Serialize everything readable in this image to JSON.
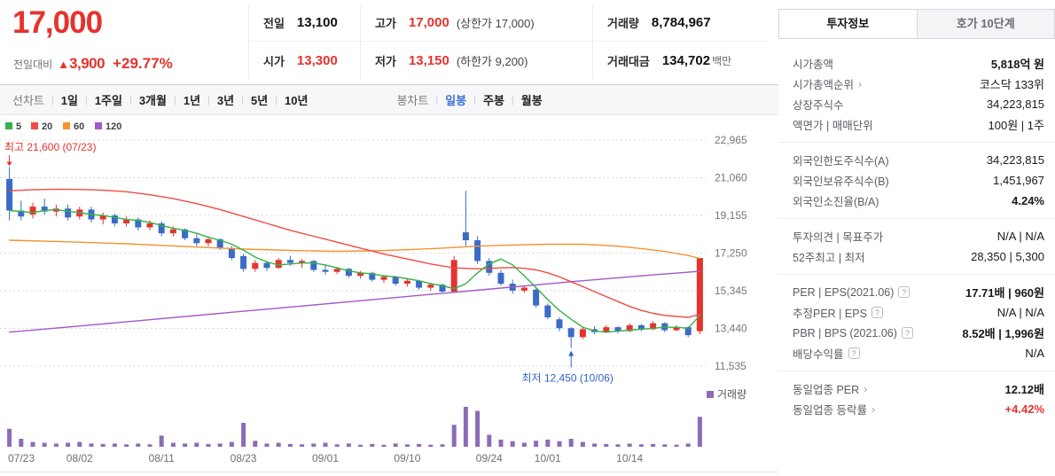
{
  "header": {
    "price": "17,000",
    "change_label": "전일대비",
    "change_arrow": "▲",
    "change_value": "3,900",
    "change_percent": "+29.77%",
    "stats": {
      "row1": [
        {
          "label": "전일",
          "value": "13,100",
          "red": false
        },
        {
          "label": "고가",
          "value": "17,000",
          "red": true,
          "extra": "(상한가 17,000)"
        },
        {
          "label": "거래량",
          "value": "8,784,967",
          "red": false
        }
      ],
      "row2": [
        {
          "label": "시가",
          "value": "13,300",
          "red": true
        },
        {
          "label": "저가",
          "value": "13,150",
          "red": true,
          "extra": "(하한가 9,200)"
        },
        {
          "label": "거래대금",
          "value": "134,702",
          "red": false,
          "suffix": "백만"
        }
      ]
    }
  },
  "toolbar": {
    "separator": "|",
    "left_group_label": "선차트",
    "left_items": [
      "1일",
      "1주일",
      "3개월",
      "1년",
      "3년",
      "5년",
      "10년"
    ],
    "right_group_label": "봉차트",
    "right_items": [
      {
        "label": "일봉",
        "active": true
      },
      {
        "label": "주봉",
        "active": false
      },
      {
        "label": "월봉",
        "active": false
      }
    ]
  },
  "chart_data": {
    "type": "candlestick",
    "up_color": "#e5332d",
    "down_color": "#3a6bc6",
    "volume_color": "#8d6bb8",
    "volume_legend": "거래량",
    "legend": [
      {
        "label": "5",
        "color": "#33b24a"
      },
      {
        "label": "20",
        "color": "#ef4b44"
      },
      {
        "label": "60",
        "color": "#f5922f"
      },
      {
        "label": "120",
        "color": "#a259c9"
      }
    ],
    "y_ticks": [
      {
        "value": 22965,
        "label": "22,965"
      },
      {
        "value": 21060,
        "label": "21,060"
      },
      {
        "value": 19155,
        "label": "19,155"
      },
      {
        "value": 17250,
        "label": "17,250"
      },
      {
        "value": 15345,
        "label": "15,345"
      },
      {
        "value": 13440,
        "label": "13,440"
      },
      {
        "value": 11535,
        "label": "11,535"
      }
    ],
    "x_ticks": [
      {
        "index": 0,
        "label": "07/23"
      },
      {
        "index": 6,
        "label": "08/02"
      },
      {
        "index": 13,
        "label": "08/11"
      },
      {
        "index": 20,
        "label": "08/23"
      },
      {
        "index": 27,
        "label": "09/01"
      },
      {
        "index": 34,
        "label": "09/10"
      },
      {
        "index": 41,
        "label": "09/24"
      },
      {
        "index": 46,
        "label": "10/01"
      },
      {
        "index": 53,
        "label": "10/14"
      }
    ],
    "annotations": {
      "high": {
        "text": "최고 21,600 (07/23)",
        "index": 0,
        "value": 21600
      },
      "low": {
        "text": "최저 12,450 (10/06)",
        "index": 48,
        "value": 12450
      }
    },
    "candles": [
      [
        "07/23",
        21000,
        21600,
        18900,
        19400
      ],
      [
        "07/26",
        19400,
        19900,
        18900,
        19100
      ],
      [
        "07/27",
        19200,
        19800,
        19000,
        19600
      ],
      [
        "07/28",
        19600,
        20000,
        19200,
        19350
      ],
      [
        "07/29",
        19350,
        19700,
        19100,
        19500
      ],
      [
        "07/30",
        19500,
        19700,
        18900,
        19050
      ],
      [
        "08/02",
        19100,
        19600,
        18950,
        19450
      ],
      [
        "08/03",
        19450,
        19600,
        18800,
        18950
      ],
      [
        "08/04",
        18950,
        19300,
        18700,
        19150
      ],
      [
        "08/05",
        19150,
        19250,
        18600,
        18750
      ],
      [
        "08/06",
        18750,
        19100,
        18600,
        18950
      ],
      [
        "08/09",
        18950,
        19050,
        18400,
        18550
      ],
      [
        "08/10",
        18550,
        18900,
        18400,
        18750
      ],
      [
        "08/11",
        18750,
        18850,
        18100,
        18250
      ],
      [
        "08/12",
        18250,
        18600,
        18100,
        18450
      ],
      [
        "08/13",
        18450,
        18500,
        17900,
        18000
      ],
      [
        "08/17",
        18000,
        18200,
        17600,
        17750
      ],
      [
        "08/18",
        17750,
        18100,
        17600,
        17950
      ],
      [
        "08/19",
        17950,
        18000,
        17400,
        17500
      ],
      [
        "08/20",
        17500,
        17600,
        16900,
        17000
      ],
      [
        "08/23",
        17100,
        17200,
        16300,
        16450
      ],
      [
        "08/24",
        16450,
        16900,
        16300,
        16750
      ],
      [
        "08/25",
        16750,
        16850,
        16350,
        16500
      ],
      [
        "08/26",
        16500,
        17000,
        16450,
        16900
      ],
      [
        "08/27",
        16900,
        17100,
        16600,
        16750
      ],
      [
        "08/30",
        16750,
        16950,
        16500,
        16850
      ],
      [
        "08/31",
        16850,
        16900,
        16300,
        16400
      ],
      [
        "09/01",
        16400,
        16650,
        16150,
        16300
      ],
      [
        "09/02",
        16300,
        16550,
        16200,
        16450
      ],
      [
        "09/03",
        16450,
        16500,
        16000,
        16100
      ],
      [
        "09/06",
        16100,
        16350,
        15950,
        16250
      ],
      [
        "09/07",
        16250,
        16300,
        15800,
        15900
      ],
      [
        "09/08",
        15900,
        16150,
        15750,
        16050
      ],
      [
        "09/09",
        16050,
        16100,
        15600,
        15700
      ],
      [
        "09/10",
        15700,
        15950,
        15550,
        15850
      ],
      [
        "09/13",
        15850,
        15900,
        15400,
        15500
      ],
      [
        "09/14",
        15500,
        15750,
        15350,
        15650
      ],
      [
        "09/15",
        15650,
        15700,
        15200,
        15300
      ],
      [
        "09/16",
        15300,
        17100,
        15250,
        16900
      ],
      [
        "09/17",
        18300,
        20400,
        17600,
        17900
      ],
      [
        "09/23",
        17900,
        18100,
        16700,
        16850
      ],
      [
        "09/24",
        16850,
        17000,
        16100,
        16250
      ],
      [
        "09/27",
        16250,
        16400,
        15600,
        15700
      ],
      [
        "09/28",
        15700,
        15900,
        15200,
        15350
      ],
      [
        "09/29",
        15350,
        15600,
        15250,
        15500
      ],
      [
        "09/30",
        15400,
        15450,
        14500,
        14600
      ],
      [
        "10/01",
        14600,
        14700,
        13900,
        14000
      ],
      [
        "10/05",
        13900,
        14000,
        13300,
        13450
      ],
      [
        "10/06",
        13450,
        13500,
        12450,
        13000
      ],
      [
        "10/07",
        13000,
        13500,
        12900,
        13400
      ],
      [
        "10/08",
        13400,
        13550,
        13150,
        13250
      ],
      [
        "10/12",
        13250,
        13600,
        13200,
        13500
      ],
      [
        "10/13",
        13500,
        13550,
        13200,
        13300
      ],
      [
        "10/14",
        13300,
        13700,
        13250,
        13600
      ],
      [
        "10/15",
        13600,
        13650,
        13300,
        13400
      ],
      [
        "10/18",
        13400,
        13800,
        13350,
        13700
      ],
      [
        "10/19",
        13700,
        13750,
        13250,
        13350
      ],
      [
        "10/20",
        13350,
        13600,
        13300,
        13500
      ],
      [
        "10/21",
        13500,
        13550,
        13000,
        13100
      ],
      [
        "10/22",
        13300,
        17000,
        13150,
        17000
      ]
    ],
    "volumes": [
      45,
      20,
      12,
      10,
      8,
      10,
      12,
      8,
      7,
      8,
      6,
      8,
      6,
      28,
      10,
      8,
      10,
      7,
      8,
      12,
      60,
      15,
      8,
      10,
      7,
      6,
      8,
      10,
      6,
      8,
      5,
      7,
      5,
      8,
      6,
      7,
      5,
      6,
      55,
      100,
      90,
      30,
      18,
      14,
      10,
      15,
      18,
      14,
      20,
      12,
      8,
      7,
      6,
      8,
      6,
      7,
      6,
      5,
      8,
      75
    ],
    "ma_lines": [
      {
        "label": "5",
        "color": "#33b24a",
        "points": [
          [
            0,
            19400
          ],
          [
            1,
            19350
          ],
          [
            2,
            19300
          ],
          [
            3,
            19400
          ],
          [
            4,
            19450
          ],
          [
            5,
            19350
          ],
          [
            6,
            19300
          ],
          [
            7,
            19200
          ],
          [
            8,
            19150
          ],
          [
            9,
            19050
          ],
          [
            10,
            18950
          ],
          [
            11,
            18900
          ],
          [
            12,
            18800
          ],
          [
            13,
            18650
          ],
          [
            14,
            18500
          ],
          [
            15,
            18400
          ],
          [
            16,
            18250
          ],
          [
            17,
            18050
          ],
          [
            18,
            17900
          ],
          [
            19,
            17700
          ],
          [
            20,
            17400
          ],
          [
            21,
            17050
          ],
          [
            22,
            16800
          ],
          [
            23,
            16650
          ],
          [
            24,
            16700
          ],
          [
            25,
            16750
          ],
          [
            26,
            16750
          ],
          [
            27,
            16650
          ],
          [
            28,
            16500
          ],
          [
            29,
            16350
          ],
          [
            30,
            16250
          ],
          [
            31,
            16200
          ],
          [
            32,
            16100
          ],
          [
            33,
            16050
          ],
          [
            34,
            15950
          ],
          [
            35,
            15850
          ],
          [
            36,
            15700
          ],
          [
            37,
            15600
          ],
          [
            38,
            15450
          ],
          [
            39,
            15700
          ],
          [
            40,
            16250
          ],
          [
            41,
            16700
          ],
          [
            42,
            16950
          ],
          [
            43,
            16650
          ],
          [
            44,
            16100
          ],
          [
            45,
            15500
          ],
          [
            46,
            14900
          ],
          [
            47,
            14350
          ],
          [
            48,
            13900
          ],
          [
            49,
            13500
          ],
          [
            50,
            13300
          ],
          [
            51,
            13250
          ],
          [
            52,
            13300
          ],
          [
            53,
            13350
          ],
          [
            54,
            13400
          ],
          [
            55,
            13450
          ],
          [
            56,
            13500
          ],
          [
            57,
            13500
          ],
          [
            58,
            13450
          ],
          [
            59,
            14100
          ]
        ]
      },
      {
        "label": "20",
        "color": "#ef4b44",
        "points": [
          [
            0,
            20400
          ],
          [
            2,
            20450
          ],
          [
            4,
            20480
          ],
          [
            6,
            20470
          ],
          [
            8,
            20430
          ],
          [
            10,
            20350
          ],
          [
            12,
            20200
          ],
          [
            14,
            20000
          ],
          [
            16,
            19750
          ],
          [
            18,
            19450
          ],
          [
            20,
            19100
          ],
          [
            22,
            18750
          ],
          [
            24,
            18400
          ],
          [
            26,
            18100
          ],
          [
            28,
            17800
          ],
          [
            30,
            17500
          ],
          [
            32,
            17200
          ],
          [
            34,
            16950
          ],
          [
            36,
            16700
          ],
          [
            38,
            16500
          ],
          [
            40,
            16450
          ],
          [
            42,
            16500
          ],
          [
            43,
            16520
          ],
          [
            44,
            16480
          ],
          [
            45,
            16400
          ],
          [
            46,
            16250
          ],
          [
            47,
            16050
          ],
          [
            48,
            15800
          ],
          [
            49,
            15550
          ],
          [
            50,
            15300
          ],
          [
            51,
            15050
          ],
          [
            52,
            14800
          ],
          [
            53,
            14550
          ],
          [
            54,
            14350
          ],
          [
            55,
            14200
          ],
          [
            56,
            14100
          ],
          [
            57,
            14050
          ],
          [
            58,
            14000
          ],
          [
            59,
            14150
          ]
        ]
      },
      {
        "label": "60",
        "color": "#f5922f",
        "points": [
          [
            0,
            17900
          ],
          [
            5,
            17820
          ],
          [
            10,
            17720
          ],
          [
            15,
            17580
          ],
          [
            20,
            17450
          ],
          [
            25,
            17370
          ],
          [
            28,
            17340
          ],
          [
            31,
            17360
          ],
          [
            34,
            17420
          ],
          [
            37,
            17500
          ],
          [
            40,
            17600
          ],
          [
            43,
            17660
          ],
          [
            46,
            17700
          ],
          [
            49,
            17700
          ],
          [
            52,
            17600
          ],
          [
            54,
            17480
          ],
          [
            56,
            17330
          ],
          [
            58,
            17130
          ],
          [
            59,
            16980
          ]
        ]
      },
      {
        "label": "120",
        "color": "#a259c9",
        "points": [
          [
            0,
            13250
          ],
          [
            6,
            13560
          ],
          [
            12,
            13880
          ],
          [
            18,
            14200
          ],
          [
            24,
            14520
          ],
          [
            30,
            14840
          ],
          [
            36,
            15160
          ],
          [
            42,
            15480
          ],
          [
            48,
            15800
          ],
          [
            54,
            16100
          ],
          [
            59,
            16330
          ]
        ]
      }
    ]
  },
  "panel": {
    "chevron_glyph": "›",
    "help_glyph": "?",
    "tabs": [
      {
        "label": "투자정보",
        "active": true
      },
      {
        "label": "호가 10단계",
        "active": false
      }
    ],
    "groups": [
      {
        "rows": [
          {
            "label": "시가총액",
            "value": "5,818억 원",
            "bold": true
          },
          {
            "label": "시가총액순위",
            "arrow": true,
            "value": "코스닥 133위"
          },
          {
            "label": "상장주식수",
            "value": "34,223,815"
          },
          {
            "label": "액면가 | 매매단위",
            "value": "100원 | 1주"
          }
        ]
      },
      {
        "rows": [
          {
            "label": "외국인한도주식수(A)",
            "value": "34,223,815"
          },
          {
            "label": "외국인보유주식수(B)",
            "value": "1,451,967"
          },
          {
            "label": "외국인소진율(B/A)",
            "value": "4.24%",
            "bold": true
          }
        ]
      },
      {
        "rows": [
          {
            "label": "투자의견 | 목표주가",
            "value": "N/A | N/A"
          },
          {
            "label": "52주최고 | 최저",
            "value": "28,350 | 5,300"
          }
        ]
      },
      {
        "rows": [
          {
            "label": "PER | EPS(2021.06)",
            "help": true,
            "value": "17.71배 | 960원",
            "bold": true
          },
          {
            "label": "추정PER | EPS",
            "help": true,
            "value": "N/A | N/A"
          },
          {
            "label": "PBR | BPS (2021.06)",
            "help": true,
            "value": "8.52배 | 1,996원",
            "bold": true
          },
          {
            "label": "배당수익률",
            "help": true,
            "value": "N/A"
          }
        ]
      },
      {
        "rows": [
          {
            "label": "동일업종 PER",
            "arrow": true,
            "value": "12.12배",
            "bold": true
          },
          {
            "label": "동일업종 등락률",
            "arrow": true,
            "value": "+4.42%",
            "bold": true,
            "color": "#e5332d"
          }
        ]
      }
    ]
  }
}
